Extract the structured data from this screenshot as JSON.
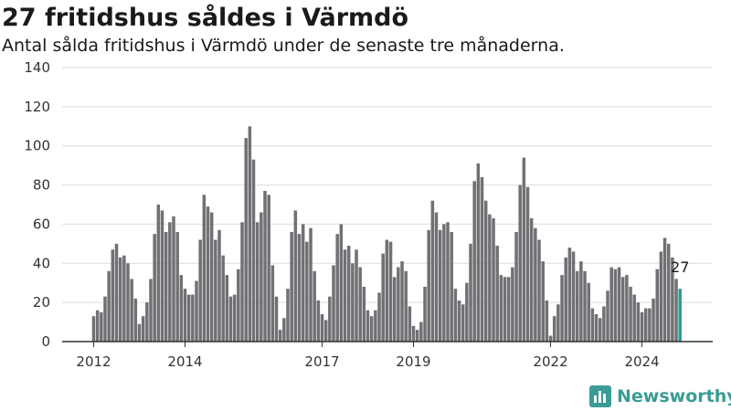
{
  "title": "27 fritidshus såldes i Värmdö",
  "subtitle": "Antal sålda fritidshus i Värmdö under de senaste tre månaderna.",
  "brand": {
    "name": "Newsworthy",
    "icon": "bar-chart-logo-icon"
  },
  "colors": {
    "bar": "#717074",
    "highlight": "#2a9d8f",
    "grid": "#dcdcdc",
    "axis": "#333333",
    "brand": "#3a9c95"
  },
  "chart_data": {
    "type": "bar",
    "y_ticks": [
      "0",
      "20",
      "40",
      "60",
      "80",
      "100",
      "120",
      "140"
    ],
    "ylim": [
      0,
      140
    ],
    "x_ticks": [
      {
        "label": "2012",
        "index": 0
      },
      {
        "label": "2014",
        "index": 24
      },
      {
        "label": "2017",
        "index": 60
      },
      {
        "label": "2019",
        "index": 84
      },
      {
        "label": "2022",
        "index": 120
      },
      {
        "label": "2024",
        "index": 144
      }
    ],
    "highlight_label": "27",
    "values": [
      13,
      16,
      15,
      23,
      36,
      47,
      50,
      43,
      44,
      40,
      32,
      22,
      9,
      13,
      20,
      32,
      55,
      70,
      67,
      56,
      61,
      64,
      56,
      34,
      27,
      24,
      24,
      31,
      52,
      75,
      69,
      66,
      52,
      57,
      44,
      34,
      23,
      24,
      37,
      61,
      104,
      110,
      93,
      61,
      66,
      77,
      75,
      39,
      23,
      6,
      12,
      27,
      56,
      67,
      55,
      60,
      51,
      58,
      36,
      21,
      14,
      11,
      23,
      39,
      55,
      60,
      47,
      49,
      40,
      47,
      38,
      28,
      16,
      13,
      16,
      25,
      45,
      52,
      51,
      33,
      38,
      41,
      36,
      18,
      8,
      6,
      10,
      28,
      57,
      72,
      66,
      57,
      60,
      61,
      56,
      27,
      21,
      19,
      30,
      50,
      82,
      91,
      84,
      72,
      65,
      63,
      49,
      34,
      33,
      33,
      38,
      56,
      80,
      94,
      79,
      63,
      58,
      52,
      41,
      21,
      3,
      13,
      19,
      34,
      43,
      48,
      46,
      36,
      41,
      36,
      30,
      17,
      14,
      12,
      18,
      26,
      38,
      37,
      38,
      33,
      34,
      28,
      24,
      20,
      15,
      17,
      17,
      22,
      37,
      46,
      53,
      50,
      43,
      32,
      27
    ]
  }
}
